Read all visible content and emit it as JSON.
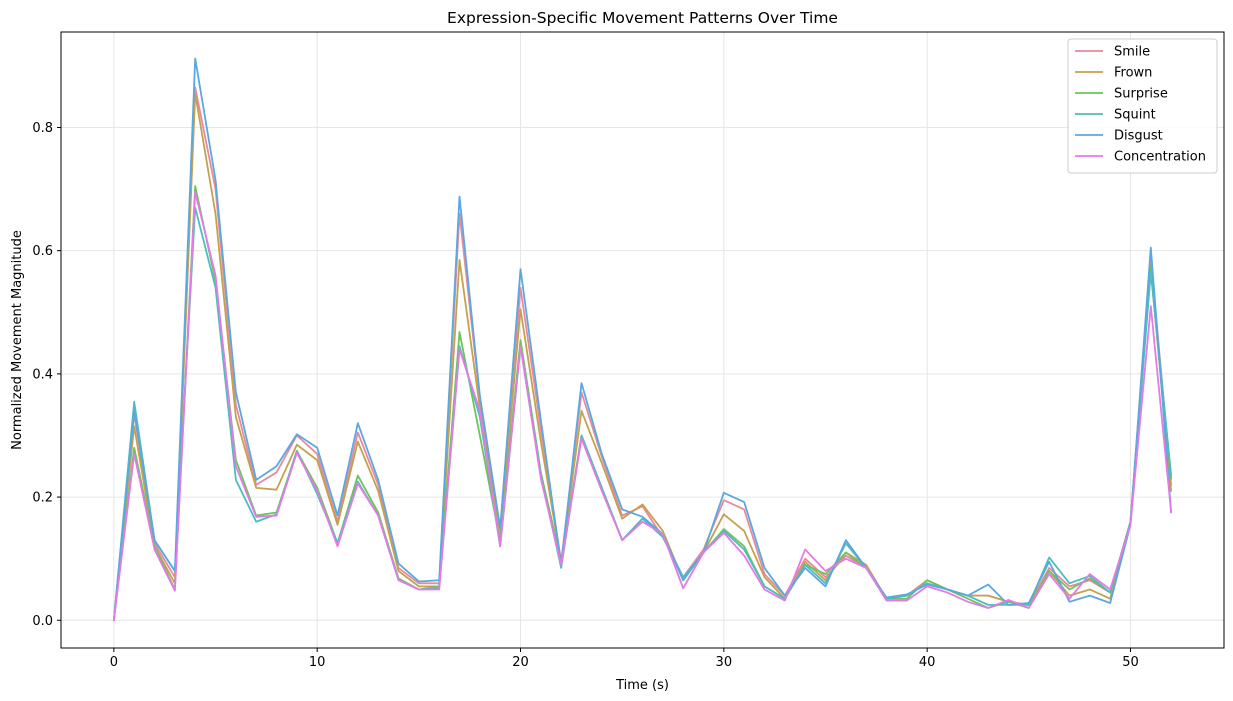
{
  "chart_data": {
    "type": "line",
    "title": "Expression-Specific Movement Patterns Over Time",
    "xlabel": "Time (s)",
    "ylabel": "Normalized Movement Magnitude",
    "xlim": [
      -2.6,
      54.6
    ],
    "ylim": [
      -0.045,
      0.955
    ],
    "xticks": [
      0,
      10,
      20,
      30,
      40,
      50
    ],
    "xtick_labels": [
      "0",
      "10",
      "20",
      "30",
      "40",
      "50"
    ],
    "yticks": [
      0.0,
      0.2,
      0.4,
      0.6,
      0.8
    ],
    "ytick_labels": [
      "0.0",
      "0.2",
      "0.4",
      "0.6",
      "0.8"
    ],
    "grid": true,
    "legend_position": "top-right",
    "x": [
      0,
      1,
      2,
      3,
      4,
      5,
      6,
      7,
      8,
      9,
      10,
      11,
      12,
      13,
      14,
      15,
      16,
      17,
      18,
      19,
      20,
      21,
      22,
      23,
      24,
      25,
      26,
      27,
      28,
      29,
      30,
      31,
      32,
      33,
      34,
      35,
      36,
      37,
      38,
      39,
      40,
      41,
      42,
      43,
      44,
      45,
      46,
      47,
      48,
      49,
      50,
      51,
      52
    ],
    "series": [
      {
        "name": "Smile",
        "color": "#e8899e",
        "values": [
          0.0,
          0.335,
          0.125,
          0.07,
          0.865,
          0.7,
          0.35,
          0.22,
          0.24,
          0.3,
          0.27,
          0.16,
          0.305,
          0.22,
          0.085,
          0.06,
          0.06,
          0.66,
          0.36,
          0.14,
          0.54,
          0.31,
          0.095,
          0.37,
          0.265,
          0.17,
          0.185,
          0.135,
          0.07,
          0.115,
          0.195,
          0.18,
          0.075,
          0.04,
          0.1,
          0.07,
          0.105,
          0.085,
          0.035,
          0.04,
          0.065,
          0.05,
          0.04,
          0.04,
          0.03,
          0.025,
          0.085,
          0.055,
          0.065,
          0.045,
          0.16,
          0.59,
          0.22
        ]
      },
      {
        "name": "Frown",
        "color": "#c4a24d",
        "values": [
          0.0,
          0.315,
          0.12,
          0.06,
          0.855,
          0.66,
          0.33,
          0.215,
          0.212,
          0.285,
          0.26,
          0.155,
          0.29,
          0.21,
          0.08,
          0.055,
          0.055,
          0.585,
          0.345,
          0.135,
          0.505,
          0.29,
          0.095,
          0.34,
          0.255,
          0.165,
          0.188,
          0.145,
          0.065,
          0.11,
          0.172,
          0.145,
          0.07,
          0.035,
          0.095,
          0.065,
          0.11,
          0.09,
          0.035,
          0.04,
          0.06,
          0.05,
          0.04,
          0.04,
          0.03,
          0.025,
          0.08,
          0.04,
          0.05,
          0.035,
          0.16,
          0.57,
          0.21
        ]
      },
      {
        "name": "Surprise",
        "color": "#6cc45a",
        "values": [
          0.0,
          0.28,
          0.12,
          0.05,
          0.705,
          0.55,
          0.26,
          0.17,
          0.175,
          0.275,
          0.215,
          0.125,
          0.235,
          0.175,
          0.068,
          0.05,
          0.055,
          0.468,
          0.3,
          0.128,
          0.455,
          0.24,
          0.095,
          0.3,
          0.215,
          0.13,
          0.165,
          0.14,
          0.065,
          0.11,
          0.148,
          0.12,
          0.055,
          0.035,
          0.09,
          0.075,
          0.11,
          0.085,
          0.035,
          0.035,
          0.065,
          0.05,
          0.035,
          0.02,
          0.03,
          0.02,
          0.08,
          0.05,
          0.068,
          0.045,
          0.16,
          0.575,
          0.23
        ]
      },
      {
        "name": "Squint",
        "color": "#4dbdbd",
        "values": [
          0.0,
          0.355,
          0.13,
          0.08,
          0.67,
          0.54,
          0.228,
          0.16,
          0.172,
          0.275,
          0.205,
          0.125,
          0.225,
          0.17,
          0.065,
          0.05,
          0.052,
          0.445,
          0.33,
          0.12,
          0.445,
          0.235,
          0.085,
          0.3,
          0.215,
          0.13,
          0.165,
          0.135,
          0.07,
          0.11,
          0.145,
          0.115,
          0.055,
          0.035,
          0.09,
          0.06,
          0.125,
          0.085,
          0.035,
          0.04,
          0.06,
          0.05,
          0.04,
          0.025,
          0.025,
          0.025,
          0.102,
          0.06,
          0.072,
          0.045,
          0.16,
          0.565,
          0.235
        ]
      },
      {
        "name": "Disgust",
        "color": "#5aa8e0",
        "values": [
          0.0,
          0.34,
          0.13,
          0.08,
          0.912,
          0.715,
          0.37,
          0.228,
          0.25,
          0.302,
          0.28,
          0.17,
          0.32,
          0.228,
          0.092,
          0.063,
          0.065,
          0.688,
          0.365,
          0.15,
          0.57,
          0.325,
          0.09,
          0.385,
          0.27,
          0.18,
          0.168,
          0.14,
          0.065,
          0.11,
          0.207,
          0.192,
          0.085,
          0.04,
          0.085,
          0.055,
          0.13,
          0.085,
          0.037,
          0.042,
          0.058,
          0.05,
          0.04,
          0.058,
          0.025,
          0.028,
          0.095,
          0.03,
          0.04,
          0.028,
          0.155,
          0.605,
          0.175
        ]
      },
      {
        "name": "Concentration",
        "color": "#e47ae8",
        "values": [
          0.0,
          0.27,
          0.115,
          0.048,
          0.695,
          0.56,
          0.25,
          0.168,
          0.17,
          0.272,
          0.21,
          0.12,
          0.222,
          0.17,
          0.065,
          0.05,
          0.05,
          0.44,
          0.34,
          0.12,
          0.445,
          0.23,
          0.09,
          0.295,
          0.21,
          0.13,
          0.16,
          0.14,
          0.052,
          0.11,
          0.142,
          0.105,
          0.05,
          0.032,
          0.115,
          0.08,
          0.1,
          0.085,
          0.032,
          0.032,
          0.055,
          0.045,
          0.03,
          0.02,
          0.033,
          0.02,
          0.075,
          0.035,
          0.075,
          0.05,
          0.155,
          0.51,
          0.175
        ]
      }
    ]
  }
}
